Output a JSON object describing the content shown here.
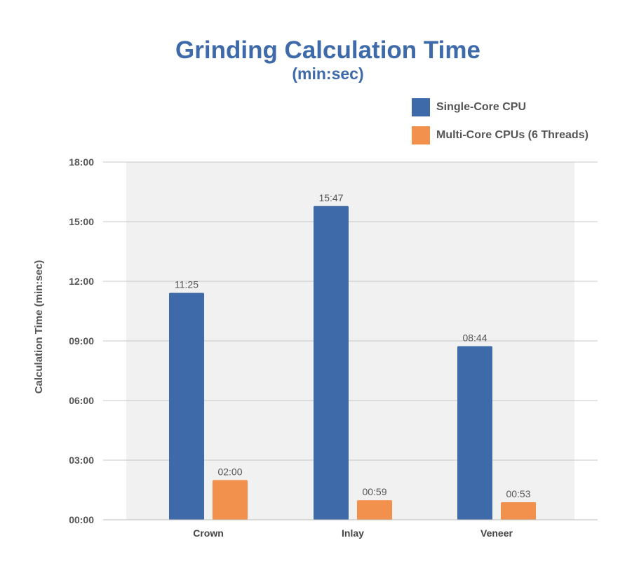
{
  "chart_data": {
    "type": "bar",
    "title": "Grinding Calculation Time",
    "subtitle": "(min:sec)",
    "xlabel": "",
    "ylabel": "Calculation Time (min:sec)",
    "categories": [
      "Crown",
      "Inlay",
      "Veneer"
    ],
    "ylim_seconds": [
      0,
      1080
    ],
    "y_ticks": [
      "00:00",
      "03:00",
      "06:00",
      "09:00",
      "12:00",
      "15:00",
      "18:00"
    ],
    "grid": true,
    "legend_position": "top-right",
    "series": [
      {
        "name": "Single-Core CPU",
        "color": "#3f6aa9",
        "values_seconds": [
          685,
          947,
          524
        ],
        "labels": [
          "11:25",
          "15:47",
          "08:44"
        ]
      },
      {
        "name": "Multi-Core CPUs (6 Threads)",
        "color": "#f2914d",
        "values_seconds": [
          120,
          59,
          53
        ],
        "labels": [
          "02:00",
          "00:59",
          "00:53"
        ]
      }
    ]
  }
}
